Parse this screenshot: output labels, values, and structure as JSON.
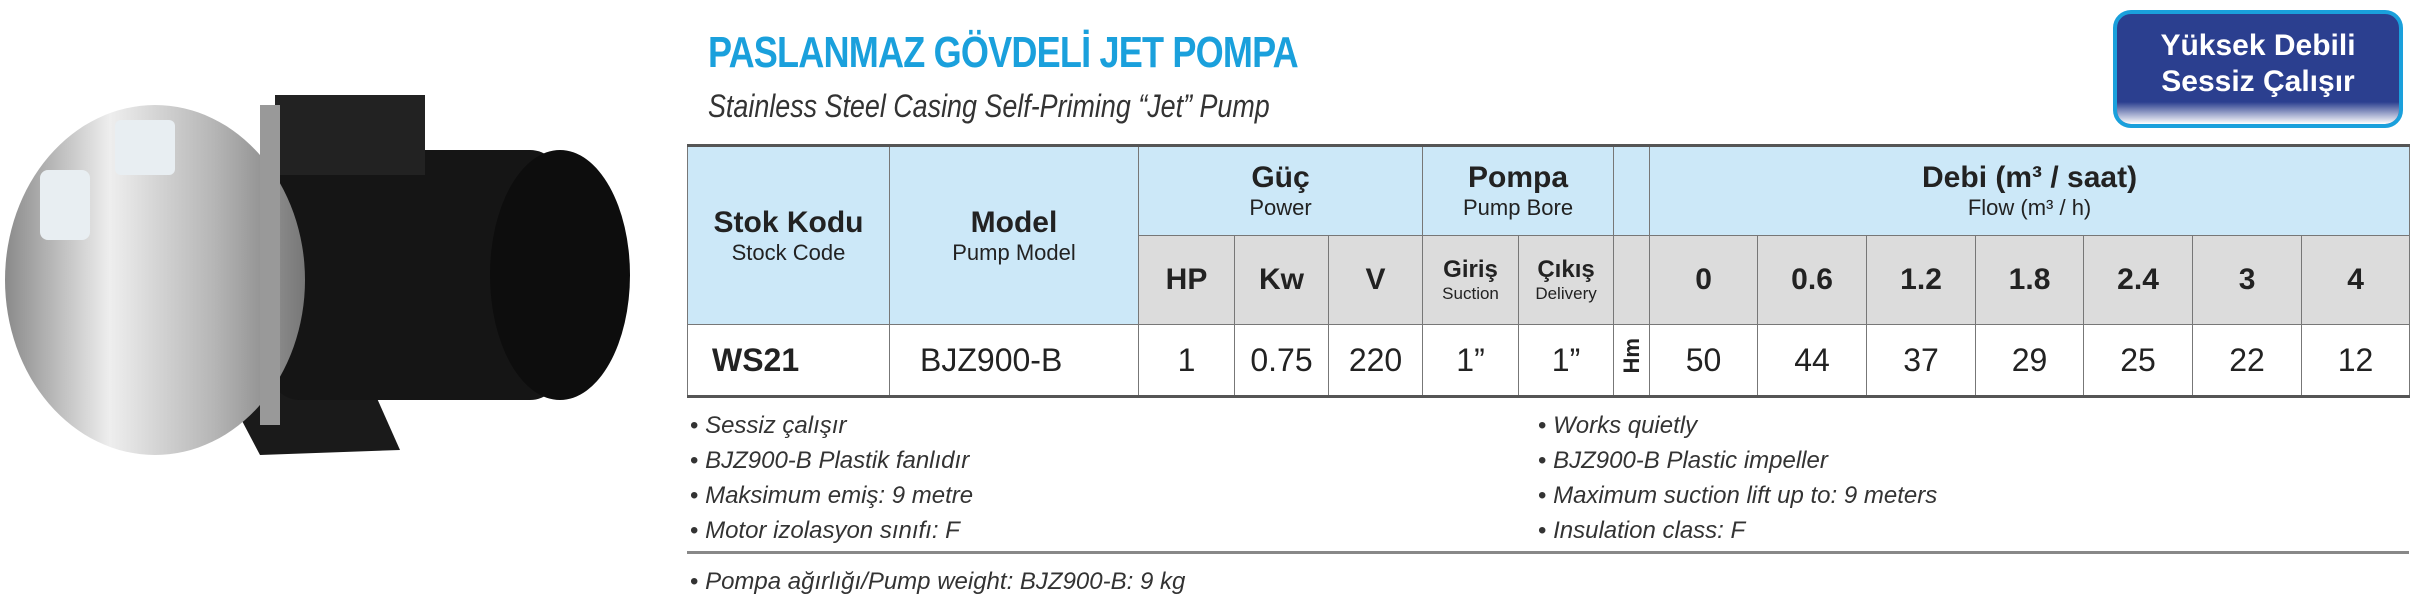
{
  "title": "PASLANMAZ GÖVDELİ JET POMPA",
  "subtitle": "Stainless Steel Casing Self-Priming “Jet” Pump",
  "badge": {
    "line1": "Yüksek Debili",
    "line2": "Sessiz Çalışır"
  },
  "colors": {
    "title": "#1aa0dc",
    "badge_bg": "#2b3f8f",
    "header_blue": "#cce8f8",
    "header_gray": "#dcdcdc"
  },
  "table": {
    "stock_code": {
      "tr": "Stok Kodu",
      "en": "Stock Code"
    },
    "model": {
      "tr": "Model",
      "en": "Pump Model"
    },
    "power": {
      "tr": "Güç",
      "en": "Power",
      "cols": [
        "HP",
        "Kw",
        "V"
      ]
    },
    "bore": {
      "tr": "Pompa",
      "en": "Pump Bore",
      "suction_tr": "Giriş",
      "suction_en": "Suction",
      "delivery_tr": "Çıkış",
      "delivery_en": "Delivery"
    },
    "flow": {
      "tr": "Debi (m³ / saat)",
      "en": "Flow (m³ / h)",
      "cols": [
        "0",
        "0.6",
        "1.2",
        "1.8",
        "2.4",
        "3",
        "4"
      ]
    },
    "head_unit": "Hm",
    "row": {
      "stock": "WS21",
      "model": "BJZ900-B",
      "hp": "1",
      "kw": "0.75",
      "v": "220",
      "suction": "1”",
      "delivery": "1”",
      "heads": [
        "50",
        "44",
        "37",
        "29",
        "25",
        "22",
        "12"
      ]
    }
  },
  "features_tr": [
    "Sessiz çalışır",
    "BJZ900-B Plastik fanlıdır",
    "Maksimum emiş: 9 metre",
    "Motor izolasyon sınıfı: F"
  ],
  "features_en": [
    "Works quietly",
    "BJZ900-B Plastic impeller",
    "Maximum suction lift up to: 9 meters",
    "Insulation class: F"
  ],
  "weight": "Pompa ağırlığı/Pump weight: BJZ900-B: 9 kg"
}
